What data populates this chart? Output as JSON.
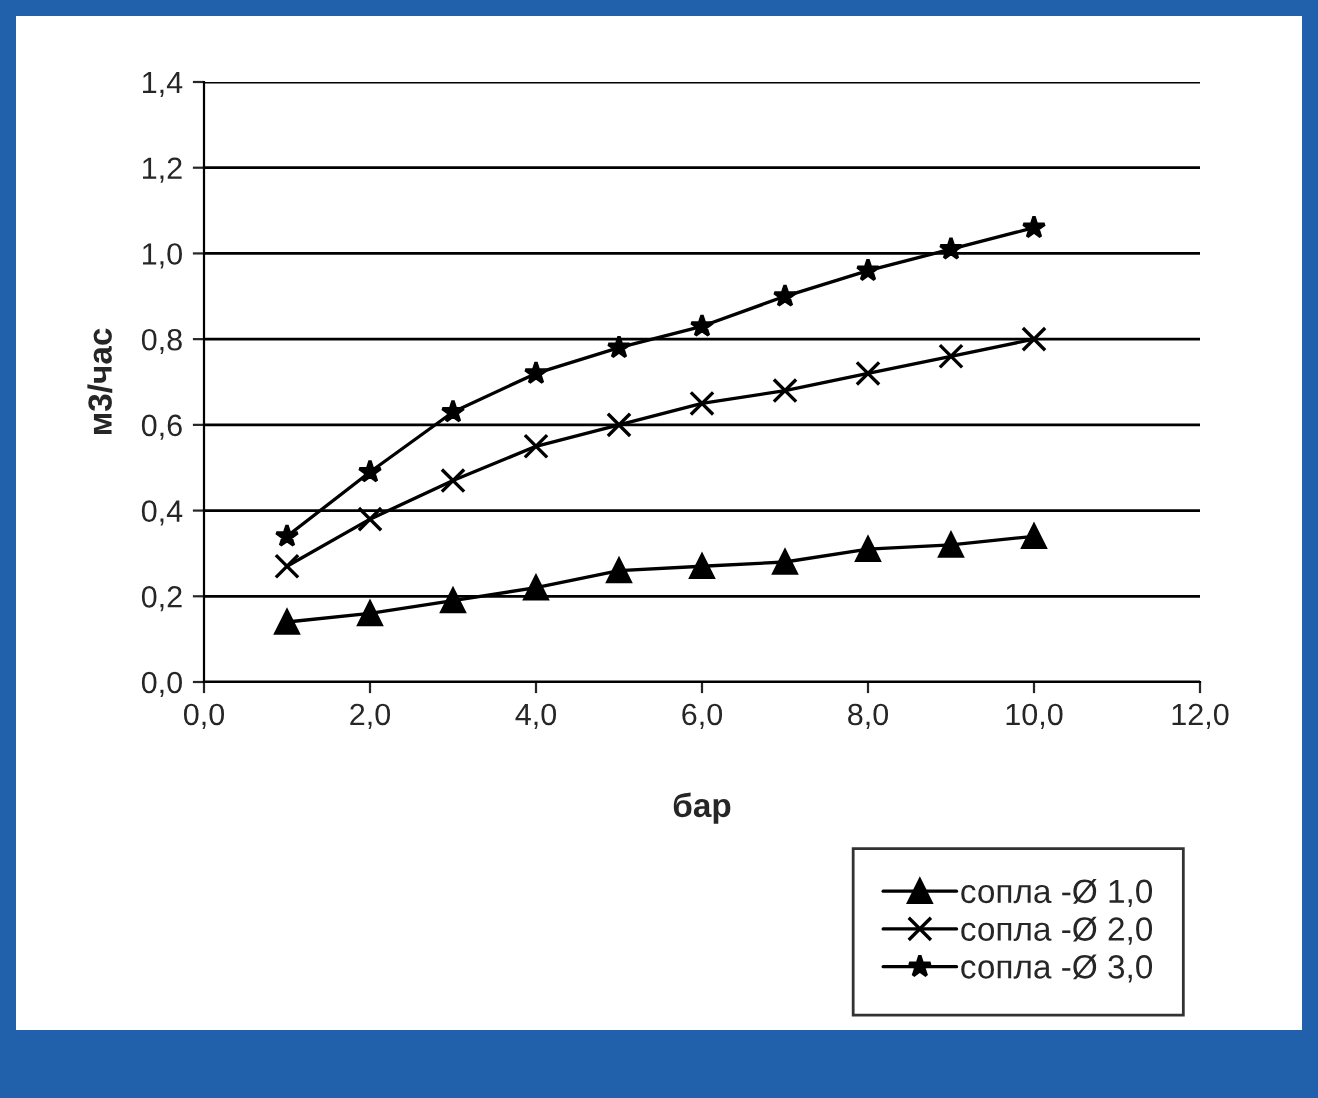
{
  "chart_data": {
    "type": "line",
    "xlabel": "бар",
    "ylabel": "м3/час",
    "x": [
      1,
      2,
      3,
      4,
      5,
      6,
      7,
      8,
      9,
      10
    ],
    "series": [
      {
        "name": "сопла -Ø 1,0",
        "color": "#000000",
        "marker": "triangle",
        "values": [
          0.14,
          0.16,
          0.19,
          0.22,
          0.26,
          0.27,
          0.28,
          0.31,
          0.32,
          0.34
        ]
      },
      {
        "name": "сопла -Ø 2,0",
        "color": "#000000",
        "marker": "cross",
        "values": [
          0.27,
          0.38,
          0.47,
          0.55,
          0.6,
          0.65,
          0.68,
          0.72,
          0.76,
          0.8
        ]
      },
      {
        "name": "сопла -Ø 3,0",
        "color": "#000000",
        "marker": "star",
        "values": [
          0.34,
          0.49,
          0.63,
          0.72,
          0.78,
          0.83,
          0.9,
          0.96,
          1.01,
          1.06
        ]
      }
    ],
    "xlim": [
      0,
      12
    ],
    "xticks": [
      {
        "value": 0,
        "label": "0,0"
      },
      {
        "value": 2,
        "label": "2,0"
      },
      {
        "value": 4,
        "label": "4,0"
      },
      {
        "value": 6,
        "label": "6,0"
      },
      {
        "value": 8,
        "label": "8,0"
      },
      {
        "value": 10,
        "label": "10,0"
      },
      {
        "value": 12,
        "label": "12,0"
      }
    ],
    "ylim": [
      0,
      1.4
    ],
    "yticks": [
      {
        "value": 0,
        "label": "0,0"
      },
      {
        "value": 0.2,
        "label": "0,2"
      },
      {
        "value": 0.4,
        "label": "0,4"
      },
      {
        "value": 0.6,
        "label": "0,6"
      },
      {
        "value": 0.8,
        "label": "0,8"
      },
      {
        "value": 1.0,
        "label": "1,0"
      },
      {
        "value": 1.2,
        "label": "1,2"
      },
      {
        "value": 1.4,
        "label": "1,4"
      }
    ],
    "grid": "y",
    "legend": "bottom right",
    "line_style": "solid"
  }
}
